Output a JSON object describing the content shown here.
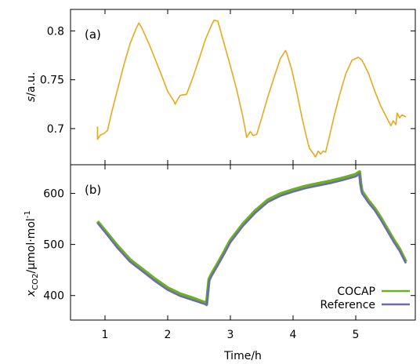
{
  "chart_data": [
    {
      "type": "line",
      "panel_label": "(a)",
      "ylabel": {
        "italic": "s",
        "rest": "/a.u."
      },
      "xlim": [
        0.45,
        5.95
      ],
      "ylim": [
        0.663,
        0.822
      ],
      "y_ticks": [
        "0.7",
        "0.75",
        "0.8"
      ],
      "grid": false,
      "colors": {
        "s": "#e8a820"
      },
      "series": [
        {
          "x": [
            0.88,
            0.88,
            0.92,
            0.98,
            1.04,
            1.1,
            1.2,
            1.3,
            1.4,
            1.5,
            1.54,
            1.58,
            1.7,
            1.8,
            1.9,
            2.0,
            2.1,
            2.12,
            2.16,
            2.2,
            2.3,
            2.4,
            2.5,
            2.6,
            2.7,
            2.74,
            2.8,
            2.9,
            3.0,
            3.1,
            3.2,
            3.26,
            3.32,
            3.36,
            3.42,
            3.5,
            3.6,
            3.7,
            3.8,
            3.88,
            3.9,
            3.98,
            4.06,
            4.14,
            4.2,
            4.26,
            4.36,
            4.4,
            4.44,
            4.48,
            4.52,
            4.58,
            4.66,
            4.74,
            4.84,
            4.94,
            5.04,
            5.1,
            5.2,
            5.3,
            5.4,
            5.48,
            5.56,
            5.6,
            5.64,
            5.66,
            5.7,
            5.74,
            5.8
          ],
          "y": [
            0.702,
            0.689,
            0.693,
            0.695,
            0.698,
            0.715,
            0.74,
            0.765,
            0.787,
            0.803,
            0.808,
            0.804,
            0.787,
            0.771,
            0.755,
            0.738,
            0.728,
            0.725,
            0.73,
            0.734,
            0.735,
            0.752,
            0.771,
            0.791,
            0.806,
            0.811,
            0.81,
            0.787,
            0.764,
            0.74,
            0.712,
            0.691,
            0.697,
            0.693,
            0.694,
            0.711,
            0.733,
            0.753,
            0.772,
            0.78,
            0.777,
            0.76,
            0.737,
            0.712,
            0.695,
            0.68,
            0.671,
            0.677,
            0.674,
            0.677,
            0.676,
            0.692,
            0.714,
            0.734,
            0.756,
            0.77,
            0.773,
            0.77,
            0.757,
            0.739,
            0.723,
            0.713,
            0.703,
            0.708,
            0.704,
            0.716,
            0.711,
            0.714,
            0.712
          ]
        }
      ]
    },
    {
      "type": "line",
      "panel_label": "(b)",
      "ylabel": {
        "x": "x",
        "sub": "CO2",
        "unit": "/µmol·mol",
        "sup": "-1"
      },
      "xlabel": "Time/h",
      "xlim": [
        0.45,
        5.95
      ],
      "ylim": [
        352,
        656
      ],
      "x_ticks": [
        "1",
        "2",
        "3",
        "4",
        "5"
      ],
      "y_ticks": [
        "400",
        "500",
        "600"
      ],
      "grid": false,
      "legend_position": "bottom-right",
      "colors": {
        "COCAP": "#6ab023",
        "Reference": "#6b6ab3"
      },
      "series": [
        {
          "name": "COCAP",
          "x": [
            0.88,
            1.0,
            1.2,
            1.4,
            1.6,
            1.8,
            2.0,
            2.2,
            2.4,
            2.6,
            2.62,
            2.66,
            2.7,
            2.8,
            2.9,
            3.0,
            3.2,
            3.4,
            3.6,
            3.8,
            4.0,
            4.2,
            4.4,
            4.6,
            4.8,
            5.0,
            5.06,
            5.08,
            5.1,
            5.2,
            5.3,
            5.4,
            5.5,
            5.6,
            5.7,
            5.8
          ],
          "y": [
            545,
            527,
            497,
            470,
            451,
            432,
            415,
            403,
            395,
            386,
            383,
            432,
            442,
            463,
            485,
            508,
            540,
            566,
            587,
            599,
            607,
            614,
            619,
            624,
            630,
            637,
            642,
            618,
            604,
            586,
            571,
            552,
            531,
            510,
            491,
            466
          ]
        },
        {
          "name": "Reference",
          "x": [
            0.88,
            1.0,
            1.2,
            1.4,
            1.6,
            1.8,
            2.0,
            2.2,
            2.4,
            2.6,
            2.62,
            2.66,
            2.7,
            2.8,
            2.9,
            3.0,
            3.2,
            3.4,
            3.6,
            3.8,
            4.0,
            4.2,
            4.4,
            4.6,
            4.8,
            5.0,
            5.06,
            5.08,
            5.1,
            5.2,
            5.3,
            5.4,
            5.5,
            5.6,
            5.7,
            5.8
          ],
          "y": [
            542,
            524,
            493,
            466,
            447,
            428,
            411,
            399,
            391,
            383,
            381,
            428,
            438,
            459,
            481,
            504,
            536,
            562,
            583,
            595,
            603,
            610,
            615,
            620,
            626,
            633,
            638,
            614,
            600,
            582,
            567,
            548,
            527,
            506,
            487,
            463
          ]
        }
      ]
    }
  ]
}
